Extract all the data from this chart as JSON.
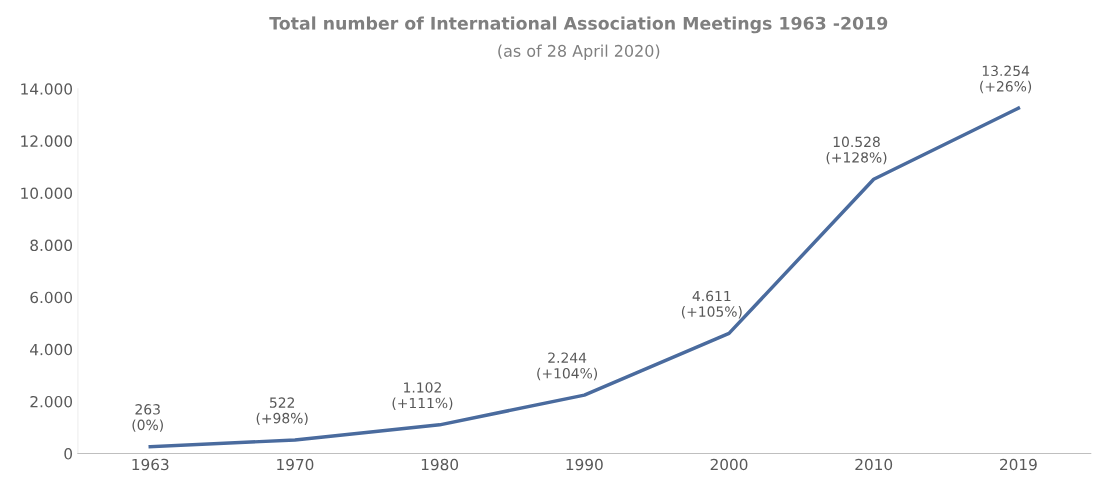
{
  "chart_data": {
    "type": "line",
    "title": "Total number of International Association Meetings 1963 -2019",
    "subtitle": "(as of 28 April 2020)",
    "categories": [
      "1963",
      "1970",
      "1980",
      "1990",
      "2000",
      "2010",
      "2019"
    ],
    "series": [
      {
        "color": "#4a6b9e",
        "values": [
          263,
          522,
          1102,
          2244,
          4611,
          10528,
          13254
        ],
        "value_labels": [
          "263\n(0%)",
          "522\n(+98%)",
          "1.102\n(+111%)",
          "2.244\n(+104%)",
          "4.611\n(+105%)",
          "10.528\n(+128%)",
          "13.254\n(+26%)"
        ]
      }
    ],
    "ylim": [
      0,
      14000
    ],
    "yticks": [
      {
        "value": 0,
        "label": "0"
      },
      {
        "value": 2000,
        "label": "2.000"
      },
      {
        "value": 4000,
        "label": "4.000"
      },
      {
        "value": 6000,
        "label": "6.000"
      },
      {
        "value": 8000,
        "label": "8.000"
      },
      {
        "value": 10000,
        "label": "10.000"
      },
      {
        "value": 12000,
        "label": "12.000"
      },
      {
        "value": 14000,
        "label": "14.000"
      }
    ],
    "grid": false,
    "legend": false,
    "marker": "none",
    "line_style": "solid"
  }
}
